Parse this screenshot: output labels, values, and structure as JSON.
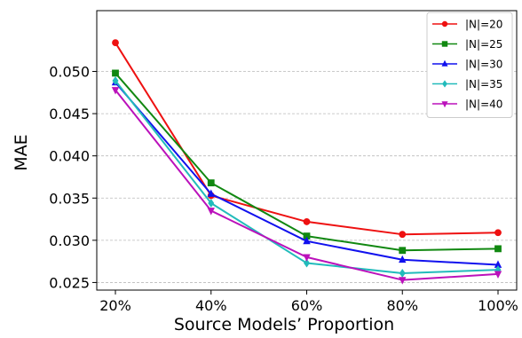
{
  "chart_data": {
    "type": "line",
    "categories": [
      "20%",
      "40%",
      "60%",
      "80%",
      "100%"
    ],
    "xlabel": "Source Models’ Proportion",
    "ylabel": "MAE",
    "ylim": [
      0.0241,
      0.0572
    ],
    "y_ticks": [
      "0.025",
      "0.030",
      "0.035",
      "0.040",
      "0.045",
      "0.050"
    ],
    "grid": "horizontal dashed",
    "legend_position": "top-right",
    "series": [
      {
        "name": "|N|=20",
        "color": "#ee1111",
        "marker": "circle",
        "values": [
          0.0534,
          0.0353,
          0.0322,
          0.0307,
          0.0309
        ]
      },
      {
        "name": "|N|=25",
        "color": "#118811",
        "marker": "square",
        "values": [
          0.0498,
          0.0368,
          0.0305,
          0.0288,
          0.029
        ]
      },
      {
        "name": "|N|=30",
        "color": "#1111ee",
        "marker": "triangle-up",
        "values": [
          0.0487,
          0.0355,
          0.0299,
          0.0277,
          0.0271
        ]
      },
      {
        "name": "|N|=35",
        "color": "#22bbbb",
        "marker": "diamond",
        "values": [
          0.0489,
          0.0344,
          0.0273,
          0.0261,
          0.0265
        ]
      },
      {
        "name": "|N|=40",
        "color": "#bb11bb",
        "marker": "triangle-down",
        "values": [
          0.0478,
          0.0335,
          0.028,
          0.0253,
          0.026
        ]
      }
    ]
  }
}
